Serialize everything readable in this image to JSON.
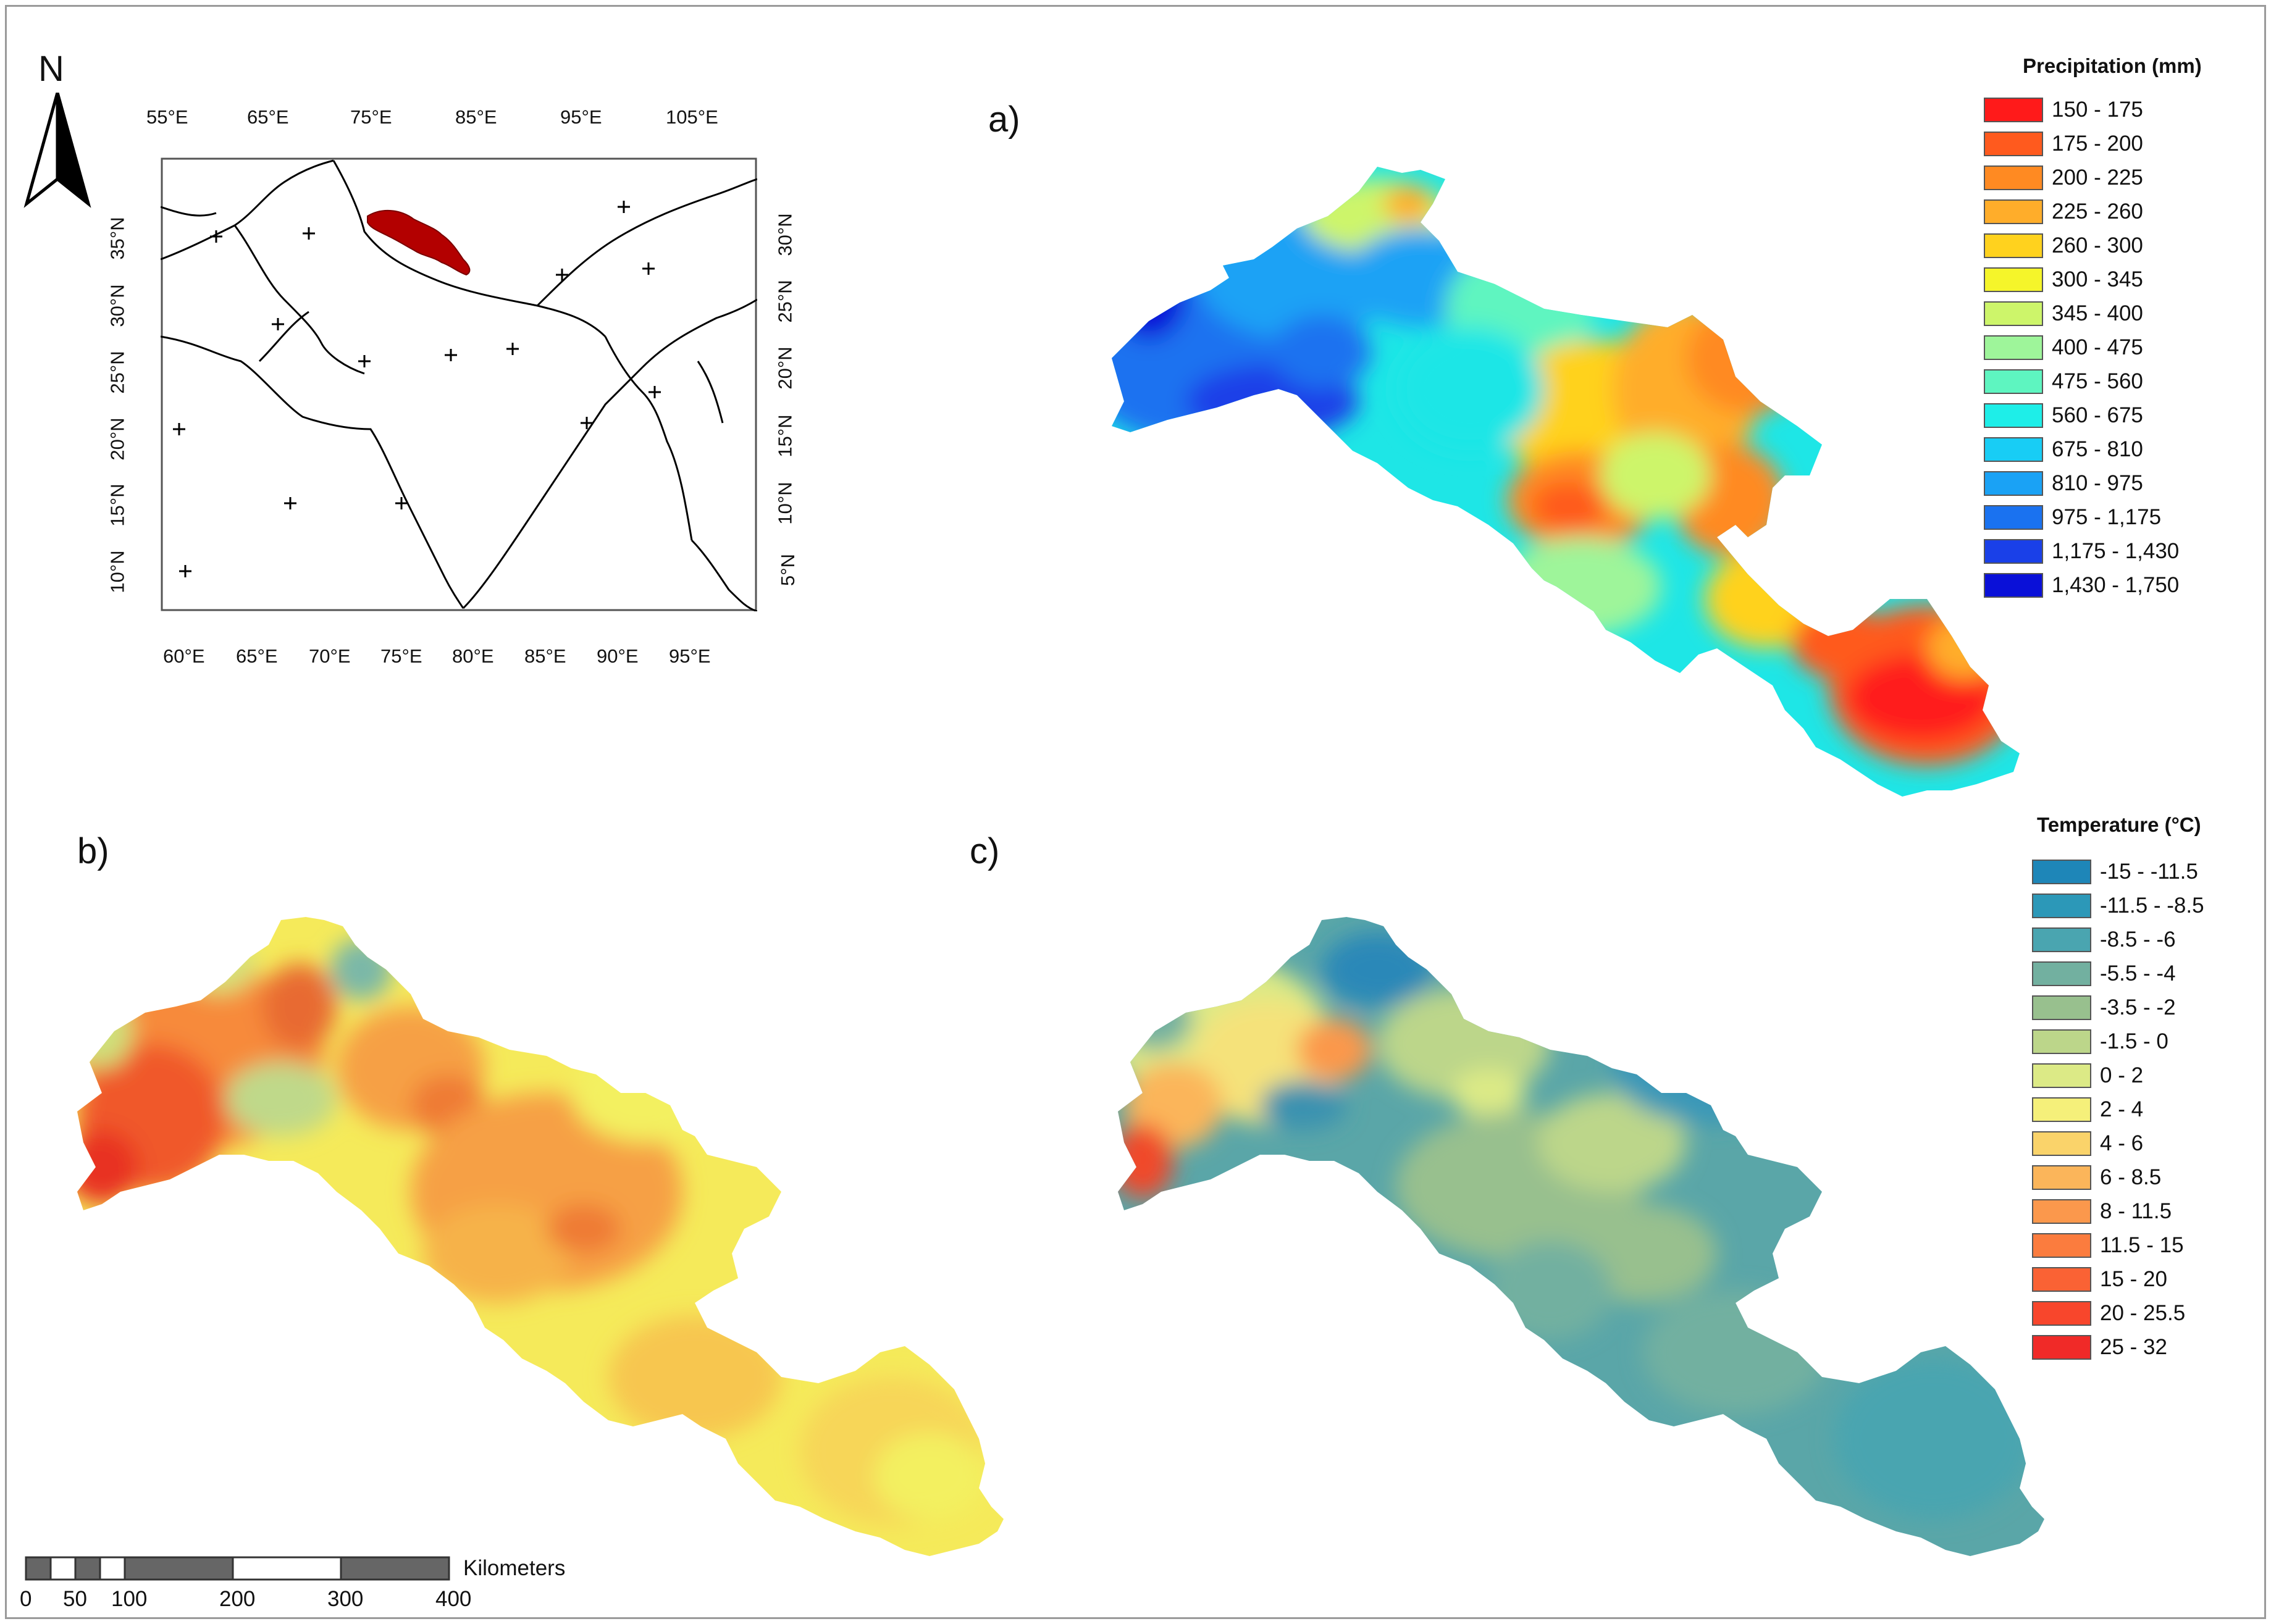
{
  "panels": {
    "a": "a)",
    "b": "b)",
    "c": "c)"
  },
  "north_label": "N",
  "inset_map": {
    "top_ticks": [
      "55°E",
      "65°E",
      "75°E",
      "85°E",
      "95°E",
      "105°E"
    ],
    "bottom_ticks": [
      "60°E",
      "65°E",
      "70°E",
      "75°E",
      "80°E",
      "85°E",
      "90°E",
      "95°E"
    ],
    "left_ticks": [
      "35°N",
      "30°N",
      "25°N",
      "20°N",
      "15°N",
      "10°N"
    ],
    "right_ticks": [
      "30°N",
      "25°N",
      "20°N",
      "15°N",
      "10°N",
      "5°N"
    ],
    "highlight_color": "#b30000"
  },
  "precip_legend": {
    "title": "Precipitation (mm)",
    "items": [
      {
        "label": "150 - 175",
        "color": "#ff1a1a"
      },
      {
        "label": "175 - 200",
        "color": "#ff5a1e"
      },
      {
        "label": "200 - 225",
        "color": "#ff8a22"
      },
      {
        "label": "225 - 260",
        "color": "#ffad2a"
      },
      {
        "label": "260 - 300",
        "color": "#ffd21e"
      },
      {
        "label": "300 - 345",
        "color": "#f5f52a"
      },
      {
        "label": "345 - 400",
        "color": "#cdf56a"
      },
      {
        "label": "400 - 475",
        "color": "#9ef59a"
      },
      {
        "label": "475 - 560",
        "color": "#5ef5c0"
      },
      {
        "label": "560 - 675",
        "color": "#1eeee8"
      },
      {
        "label": "675 - 810",
        "color": "#18cdf5"
      },
      {
        "label": "810 - 975",
        "color": "#1aa2f5"
      },
      {
        "label": "975 - 1,175",
        "color": "#1a72f0"
      },
      {
        "label": "1,175 - 1,430",
        "color": "#1a40e8"
      },
      {
        "label": "1,430 - 1,750",
        "color": "#0a10d8"
      }
    ]
  },
  "temp_legend": {
    "title": "Temperature (°C)",
    "items": [
      {
        "label": "-15 - -11.5",
        "color": "#1e86b8"
      },
      {
        "label": "-11.5 - -8.5",
        "color": "#2c98b8"
      },
      {
        "label": "-8.5 - -6",
        "color": "#4aa5b0"
      },
      {
        "label": "-5.5 - -4",
        "color": "#72b0a0"
      },
      {
        "label": "-3.5 - -2",
        "color": "#98c08e"
      },
      {
        "label": "-1.5 - 0",
        "color": "#bcd68a"
      },
      {
        "label": "0 - 2",
        "color": "#dcea86"
      },
      {
        "label": "2 - 4",
        "color": "#f5f07a"
      },
      {
        "label": "4 - 6",
        "color": "#fad36a"
      },
      {
        "label": "6 - 8.5",
        "color": "#fbb55a"
      },
      {
        "label": "8 - 11.5",
        "color": "#fb984c"
      },
      {
        "label": "11.5 - 15",
        "color": "#fb7c3e"
      },
      {
        "label": "15 - 20",
        "color": "#fa6234"
      },
      {
        "label": "20 - 25.5",
        "color": "#f8462c"
      },
      {
        "label": "25 - 32",
        "color": "#f02a28"
      }
    ]
  },
  "scale_bar": {
    "unit": "Kilometers",
    "labels": [
      "0",
      "50",
      "100",
      "200",
      "300",
      "400"
    ]
  }
}
